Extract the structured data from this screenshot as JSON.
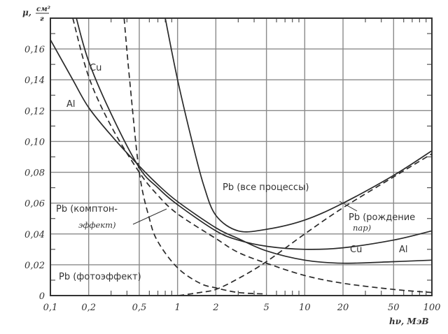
{
  "chart_data": {
    "type": "line",
    "title": "",
    "xlabel": "hν, МэВ",
    "ylabel": "μ, см²/г",
    "xscale": "log",
    "xlim": [
      0.1,
      100
    ],
    "ylim": [
      0,
      0.18
    ],
    "grid": true,
    "x_ticks": [
      "0,1",
      "0,2",
      "0,5",
      "1",
      "2",
      "5",
      "10",
      "20",
      "50",
      "100"
    ],
    "y_ticks": [
      "0",
      "0,02",
      "0,04",
      "0,06",
      "0,08",
      "0,10",
      "0,12",
      "0,14",
      "0,16"
    ],
    "series": [
      {
        "name": "Al",
        "style": "solid",
        "x": [
          0.1,
          0.15,
          0.2,
          0.3,
          0.5,
          0.7,
          1,
          2,
          3,
          5,
          10,
          20,
          50,
          100
        ],
        "y": [
          0.166,
          0.14,
          0.122,
          0.104,
          0.084,
          0.072,
          0.061,
          0.044,
          0.037,
          0.029,
          0.023,
          0.021,
          0.022,
          0.023
        ]
      },
      {
        "name": "Cu",
        "style": "solid",
        "x": [
          0.16,
          0.2,
          0.3,
          0.5,
          0.7,
          1,
          2,
          3,
          5,
          10,
          20,
          50,
          100
        ],
        "y": [
          0.18,
          0.152,
          0.118,
          0.083,
          0.07,
          0.059,
          0.042,
          0.036,
          0.032,
          0.03,
          0.031,
          0.036,
          0.042
        ]
      },
      {
        "name": "Pb (все процессы)",
        "style": "solid",
        "x": [
          0.8,
          1,
          1.3,
          1.6,
          2,
          3,
          5,
          10,
          20,
          50,
          100
        ],
        "y": [
          0.18,
          0.14,
          0.1,
          0.072,
          0.052,
          0.042,
          0.043,
          0.049,
          0.06,
          0.078,
          0.094
        ]
      },
      {
        "name": "Pb (комптон-эффект)",
        "style": "dashed",
        "x": [
          0.15,
          0.2,
          0.3,
          0.5,
          0.7,
          1,
          2,
          3,
          5,
          10,
          20,
          50,
          100
        ],
        "y": [
          0.18,
          0.142,
          0.11,
          0.08,
          0.065,
          0.053,
          0.037,
          0.028,
          0.021,
          0.013,
          0.008,
          0.004,
          0.002
        ]
      },
      {
        "name": "Pb (фотоэффект)",
        "style": "dashed",
        "x": [
          0.38,
          0.42,
          0.5,
          0.6,
          0.7,
          1,
          1.5,
          2,
          3,
          5
        ],
        "y": [
          0.18,
          0.14,
          0.08,
          0.05,
          0.035,
          0.018,
          0.008,
          0.005,
          0.002,
          0.001
        ]
      },
      {
        "name": "Pb (рождение пар)",
        "style": "dashed",
        "x": [
          1.02,
          1.5,
          2,
          3,
          5,
          10,
          20,
          50,
          100
        ],
        "y": [
          0.0,
          0.002,
          0.004,
          0.011,
          0.022,
          0.04,
          0.057,
          0.077,
          0.092
        ]
      }
    ],
    "annotations": [
      {
        "text": "Cu",
        "x": 0.28,
        "y": 0.147
      },
      {
        "text": "Al",
        "x": 0.145,
        "y": 0.123
      },
      {
        "text": "Pb (все процессы)",
        "x": 3.2,
        "y": 0.071
      },
      {
        "text": "Pb (комптон-эффект)",
        "x": 0.105,
        "y": 0.056
      },
      {
        "text": "Pb (фотоэффект)",
        "x": 0.105,
        "y": 0.014
      },
      {
        "text": "Pb (рождение пар)",
        "x": 11,
        "y": 0.052
      },
      {
        "text": "Cu",
        "x": 11,
        "y": 0.029
      },
      {
        "text": "Al",
        "x": 28,
        "y": 0.029
      }
    ]
  },
  "labels": {
    "ylabel_mu": "μ,",
    "ylabel_num": "см²",
    "ylabel_den": "г",
    "xlabel": "hν, МэВ",
    "y_ticks": [
      "0",
      "0,02",
      "0,04",
      "0,06",
      "0,08",
      "0,10",
      "0,12",
      "0,14",
      "0,16"
    ],
    "x_ticks": [
      "0,1",
      "0,2",
      "0,5",
      "1",
      "2",
      "5",
      "10",
      "20",
      "50",
      "100"
    ],
    "cu_top": "Cu",
    "al_top": "Al",
    "pb_all": "Pb (все процессы)",
    "pb_compton_1": "Pb (комптон-",
    "pb_compton_2": "эффект)",
    "pb_photo": "Pb (фотоэффект)",
    "pb_pair_1": "Pb (рождение",
    "pb_pair_2": "пар)",
    "cu_right": "Cu",
    "al_right": "Al"
  }
}
